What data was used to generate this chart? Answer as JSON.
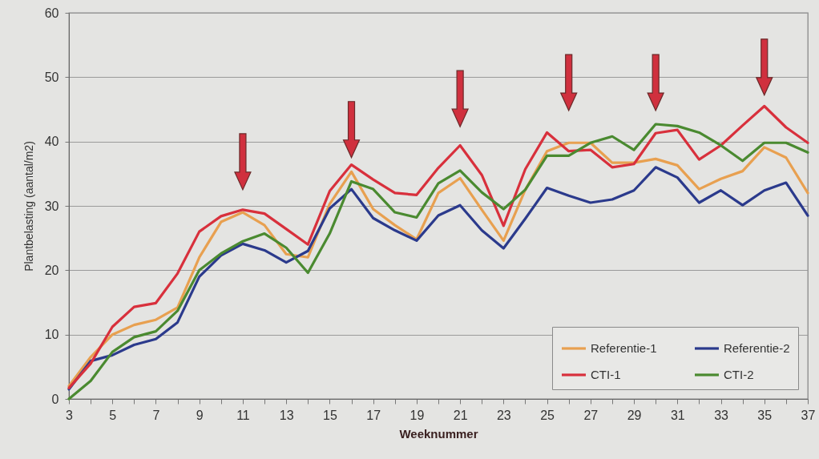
{
  "chart_data": {
    "type": "line",
    "xlabel": "Weeknummer",
    "ylabel": "Plantbelasting (aantal/m2)",
    "x": [
      3,
      4,
      5,
      6,
      7,
      8,
      9,
      10,
      11,
      12,
      13,
      14,
      15,
      16,
      17,
      18,
      19,
      20,
      21,
      22,
      23,
      24,
      25,
      26,
      27,
      28,
      29,
      30,
      31,
      32,
      33,
      34,
      35,
      36,
      37
    ],
    "series": [
      {
        "name": "Referentie-1",
        "color": "#e8a050",
        "values": [
          2,
          6.5,
          10,
          11.5,
          12.3,
          14.2,
          22,
          27.5,
          29,
          27,
          22.5,
          22,
          30.3,
          35.3,
          29.5,
          27,
          24.8,
          32,
          34.3,
          29.4,
          24.6,
          32.5,
          38.5,
          39.8,
          39.8,
          36.7,
          36.7,
          37.3,
          36.3,
          32.6,
          34.2,
          35.4,
          39.1,
          37.5,
          32
        ]
      },
      {
        "name": "Referentie-2",
        "color": "#2b3a8c",
        "values": [
          1.5,
          5.9,
          6.8,
          8.4,
          9.3,
          11.9,
          19,
          22.3,
          24.1,
          23.1,
          21.2,
          23,
          29.6,
          32.6,
          28.1,
          26.2,
          24.6,
          28.5,
          30.1,
          26.2,
          23.4,
          28,
          32.8,
          31.6,
          30.5,
          31,
          32.4,
          36,
          34.4,
          30.5,
          32.4,
          30.1,
          32.4,
          33.6,
          28.5
        ]
      },
      {
        "name": "CTI-1",
        "color": "#d8303c",
        "values": [
          1.7,
          5.5,
          11.2,
          14.3,
          14.9,
          19.5,
          26,
          28.4,
          29.4,
          28.8,
          26.4,
          24,
          32.3,
          36.4,
          34.1,
          32,
          31.7,
          35.9,
          39.4,
          34.8,
          26.9,
          35.7,
          41.4,
          38.5,
          38.7,
          36,
          36.5,
          41.3,
          41.8,
          37.2,
          39.4,
          42.5,
          45.5,
          42.2,
          39.8
        ]
      },
      {
        "name": "CTI-2",
        "color": "#4a8a30",
        "values": [
          0,
          2.8,
          7.3,
          9.6,
          10.5,
          13.7,
          20,
          22.6,
          24.5,
          25.7,
          23.5,
          19.6,
          25.7,
          33.8,
          32.6,
          29,
          28.2,
          33.5,
          35.5,
          32.1,
          29.5,
          32.5,
          37.8,
          37.8,
          39.8,
          40.8,
          38.7,
          42.7,
          42.4,
          41.4,
          39.4,
          37,
          39.8,
          39.8,
          38.3
        ]
      }
    ],
    "xlim": [
      3,
      37
    ],
    "xticks": [
      3,
      {
        "value": 4,
        "label": null
      },
      5,
      {
        "value": 6,
        "label": null
      },
      7,
      {
        "value": 8,
        "label": null
      },
      9,
      {
        "value": 10,
        "label": null
      },
      11,
      {
        "value": 12,
        "label": null
      },
      13,
      {
        "value": 14,
        "label": null
      },
      15,
      {
        "value": 16,
        "label": null
      },
      17,
      {
        "value": 18,
        "label": null
      },
      19,
      {
        "value": 20,
        "label": null
      },
      21,
      {
        "value": 22,
        "label": null
      },
      23,
      {
        "value": 24,
        "label": null
      },
      25,
      {
        "value": 26,
        "label": null
      },
      27,
      {
        "value": 28,
        "label": null
      },
      29,
      {
        "value": 30,
        "label": null
      },
      31,
      {
        "value": 32,
        "label": null
      },
      33,
      {
        "value": 34,
        "label": null
      },
      35,
      {
        "value": 36,
        "label": null
      },
      37
    ],
    "ylim": [
      0,
      60
    ],
    "yticks": [
      0,
      10,
      20,
      30,
      40,
      50,
      60
    ],
    "grid": "y",
    "legend": "bottom right"
  }
}
